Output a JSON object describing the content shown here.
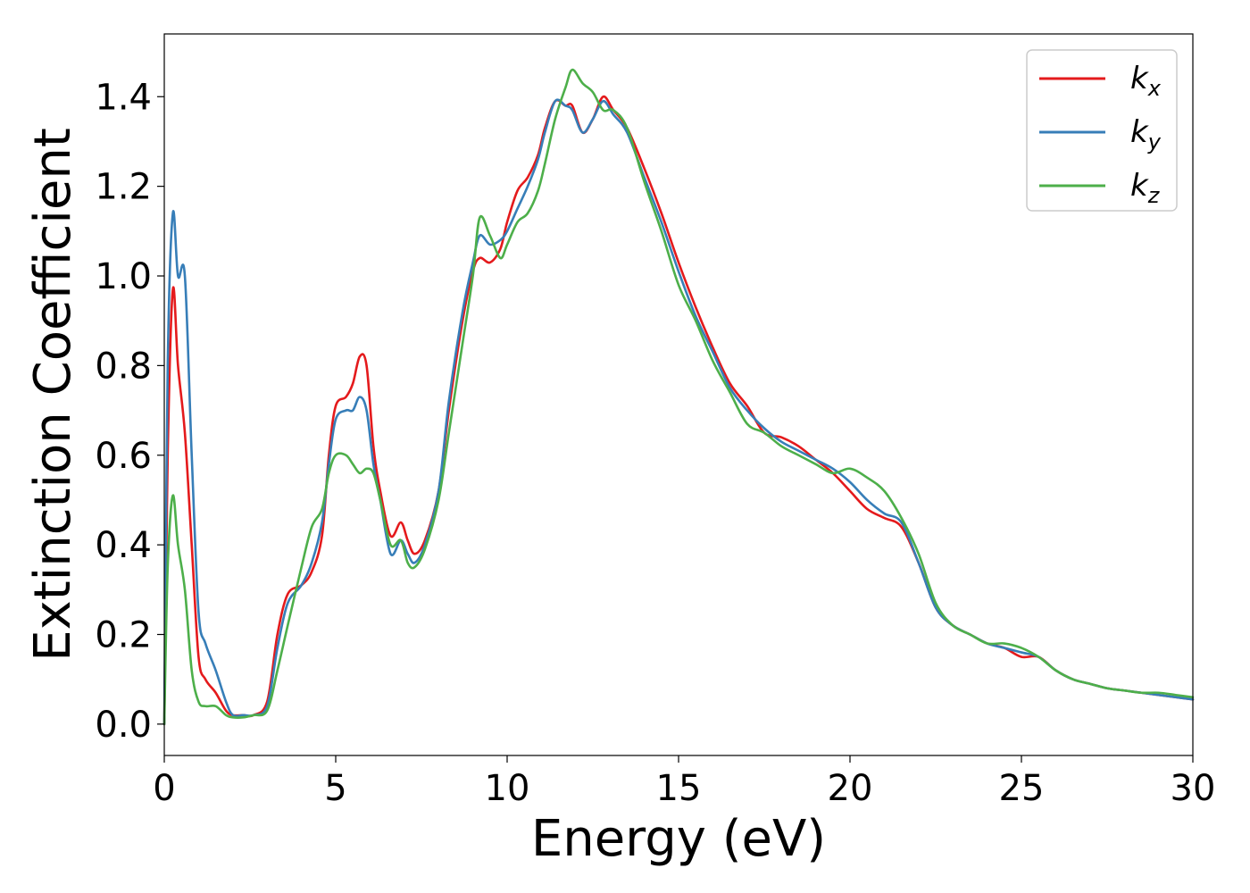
{
  "chart_data": {
    "type": "line",
    "title": "",
    "xlabel": "Energy (eV)",
    "ylabel": "Extinction Coefficient",
    "xlim": [
      0,
      30
    ],
    "ylim": [
      -0.07,
      1.54
    ],
    "xticks": [
      0,
      5,
      10,
      15,
      20,
      25,
      30
    ],
    "xtick_labels": [
      "0",
      "5",
      "10",
      "15",
      "20",
      "25",
      "30"
    ],
    "yticks": [
      0.0,
      0.2,
      0.4,
      0.6,
      0.8,
      1.0,
      1.2,
      1.4
    ],
    "ytick_labels": [
      "0.0",
      "0.2",
      "0.4",
      "0.6",
      "0.8",
      "1.0",
      "1.2",
      "1.4"
    ],
    "grid": false,
    "legend_position": "top-right",
    "series": [
      {
        "name": "k",
        "subscript": "x",
        "color": "#e41a1c",
        "x": [
          0,
          0.1,
          0.25,
          0.4,
          0.6,
          0.8,
          1.0,
          1.2,
          1.5,
          1.8,
          2.0,
          2.3,
          2.6,
          3.0,
          3.3,
          3.6,
          4.0,
          4.3,
          4.6,
          4.8,
          5.0,
          5.3,
          5.5,
          5.7,
          5.9,
          6.1,
          6.3,
          6.6,
          6.9,
          7.1,
          7.3,
          7.6,
          8.0,
          8.3,
          8.7,
          9.0,
          9.2,
          9.5,
          9.8,
          10.0,
          10.3,
          10.6,
          10.9,
          11.1,
          11.4,
          11.7,
          11.9,
          12.2,
          12.5,
          12.8,
          13.1,
          13.5,
          14.0,
          14.5,
          15.0,
          15.5,
          16.0,
          16.5,
          17.0,
          17.5,
          18.0,
          18.5,
          19.0,
          19.5,
          20.0,
          20.5,
          21.0,
          21.5,
          22.0,
          22.5,
          23.0,
          23.5,
          24.0,
          24.5,
          25.0,
          25.5,
          26.0,
          26.5,
          27.0,
          27.5,
          28.0,
          28.5,
          29.0,
          29.5,
          30.0
        ],
        "y": [
          0.0,
          0.6,
          0.97,
          0.8,
          0.65,
          0.4,
          0.15,
          0.1,
          0.07,
          0.03,
          0.02,
          0.02,
          0.02,
          0.05,
          0.2,
          0.29,
          0.31,
          0.34,
          0.42,
          0.6,
          0.71,
          0.73,
          0.76,
          0.82,
          0.8,
          0.62,
          0.52,
          0.42,
          0.45,
          0.41,
          0.38,
          0.41,
          0.52,
          0.7,
          0.9,
          1.01,
          1.04,
          1.03,
          1.06,
          1.12,
          1.19,
          1.22,
          1.27,
          1.33,
          1.39,
          1.38,
          1.38,
          1.32,
          1.35,
          1.4,
          1.37,
          1.33,
          1.24,
          1.14,
          1.03,
          0.93,
          0.84,
          0.76,
          0.71,
          0.65,
          0.64,
          0.62,
          0.59,
          0.56,
          0.52,
          0.48,
          0.46,
          0.44,
          0.36,
          0.26,
          0.22,
          0.2,
          0.18,
          0.17,
          0.15,
          0.15,
          0.12,
          0.1,
          0.09,
          0.08,
          0.075,
          0.07,
          0.065,
          0.06,
          0.055
        ]
      },
      {
        "name": "k",
        "subscript": "y",
        "color": "#377eb8",
        "x": [
          0,
          0.1,
          0.25,
          0.4,
          0.6,
          0.8,
          1.0,
          1.2,
          1.5,
          1.8,
          2.0,
          2.3,
          2.6,
          3.0,
          3.3,
          3.6,
          4.0,
          4.3,
          4.6,
          4.8,
          5.0,
          5.3,
          5.5,
          5.7,
          5.9,
          6.1,
          6.3,
          6.6,
          6.9,
          7.1,
          7.3,
          7.6,
          8.0,
          8.3,
          8.7,
          9.0,
          9.2,
          9.5,
          9.8,
          10.0,
          10.3,
          10.6,
          10.9,
          11.1,
          11.4,
          11.7,
          11.9,
          12.2,
          12.5,
          12.8,
          13.1,
          13.5,
          14.0,
          14.5,
          15.0,
          15.5,
          16.0,
          16.5,
          17.0,
          17.5,
          18.0,
          18.5,
          19.0,
          19.5,
          20.0,
          20.5,
          21.0,
          21.5,
          22.0,
          22.5,
          23.0,
          23.5,
          24.0,
          24.5,
          25.0,
          25.5,
          26.0,
          26.5,
          27.0,
          27.5,
          28.0,
          28.5,
          29.0,
          29.5,
          30.0
        ],
        "y": [
          0.0,
          0.8,
          1.14,
          1.0,
          1.0,
          0.6,
          0.25,
          0.18,
          0.12,
          0.05,
          0.02,
          0.02,
          0.02,
          0.04,
          0.17,
          0.27,
          0.31,
          0.36,
          0.45,
          0.58,
          0.68,
          0.7,
          0.7,
          0.73,
          0.7,
          0.58,
          0.5,
          0.38,
          0.41,
          0.38,
          0.36,
          0.4,
          0.52,
          0.72,
          0.92,
          1.03,
          1.09,
          1.07,
          1.08,
          1.1,
          1.15,
          1.2,
          1.26,
          1.32,
          1.39,
          1.38,
          1.37,
          1.32,
          1.35,
          1.39,
          1.36,
          1.32,
          1.22,
          1.12,
          1.01,
          0.91,
          0.83,
          0.75,
          0.7,
          0.66,
          0.63,
          0.61,
          0.59,
          0.57,
          0.54,
          0.5,
          0.47,
          0.45,
          0.36,
          0.26,
          0.22,
          0.2,
          0.18,
          0.17,
          0.16,
          0.15,
          0.12,
          0.1,
          0.09,
          0.08,
          0.075,
          0.07,
          0.065,
          0.06,
          0.055
        ]
      },
      {
        "name": "k",
        "subscript": "z",
        "color": "#4daf4a",
        "x": [
          0,
          0.1,
          0.25,
          0.4,
          0.6,
          0.8,
          1.0,
          1.2,
          1.5,
          1.8,
          2.0,
          2.3,
          2.6,
          3.0,
          3.3,
          3.6,
          4.0,
          4.3,
          4.6,
          4.8,
          5.0,
          5.3,
          5.5,
          5.7,
          5.9,
          6.1,
          6.3,
          6.6,
          6.9,
          7.1,
          7.3,
          7.6,
          8.0,
          8.3,
          8.7,
          9.0,
          9.2,
          9.5,
          9.8,
          10.0,
          10.3,
          10.6,
          10.9,
          11.1,
          11.4,
          11.7,
          11.9,
          12.2,
          12.5,
          12.8,
          13.1,
          13.5,
          14.0,
          14.5,
          15.0,
          15.5,
          16.0,
          16.5,
          17.0,
          17.5,
          18.0,
          18.5,
          19.0,
          19.5,
          20.0,
          20.5,
          21.0,
          21.5,
          22.0,
          22.5,
          23.0,
          23.5,
          24.0,
          24.5,
          25.0,
          25.5,
          26.0,
          26.5,
          27.0,
          27.5,
          28.0,
          28.5,
          29.0,
          29.5,
          30.0
        ],
        "y": [
          0.0,
          0.35,
          0.51,
          0.4,
          0.3,
          0.12,
          0.05,
          0.04,
          0.04,
          0.02,
          0.015,
          0.015,
          0.02,
          0.03,
          0.12,
          0.22,
          0.35,
          0.44,
          0.48,
          0.56,
          0.6,
          0.6,
          0.58,
          0.56,
          0.57,
          0.56,
          0.5,
          0.4,
          0.41,
          0.36,
          0.35,
          0.39,
          0.5,
          0.65,
          0.85,
          1.0,
          1.13,
          1.09,
          1.04,
          1.07,
          1.12,
          1.14,
          1.19,
          1.25,
          1.35,
          1.42,
          1.46,
          1.43,
          1.41,
          1.37,
          1.37,
          1.33,
          1.21,
          1.1,
          0.98,
          0.9,
          0.81,
          0.74,
          0.67,
          0.65,
          0.62,
          0.6,
          0.58,
          0.56,
          0.57,
          0.55,
          0.52,
          0.46,
          0.38,
          0.27,
          0.22,
          0.2,
          0.18,
          0.18,
          0.17,
          0.15,
          0.12,
          0.1,
          0.09,
          0.08,
          0.075,
          0.07,
          0.07,
          0.065,
          0.06
        ]
      }
    ]
  }
}
